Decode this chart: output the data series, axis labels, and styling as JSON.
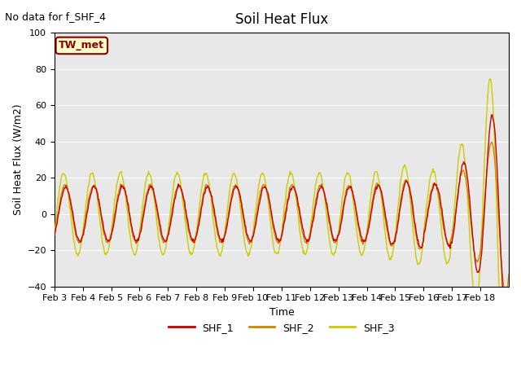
{
  "title": "Soil Heat Flux",
  "ylabel": "Soil Heat Flux (W/m2)",
  "xlabel": "Time",
  "no_data_text": "No data for f_SHF_4",
  "station_label": "TW_met",
  "ylim": [
    -40,
    100
  ],
  "yticks": [
    -40,
    -20,
    0,
    20,
    40,
    60,
    80,
    100
  ],
  "x_tick_labels": [
    "Feb 3",
    "Feb 4",
    "Feb 5",
    "Feb 6",
    "Feb 7",
    "Feb 8",
    "Feb 9",
    "Feb 10",
    "Feb 11",
    "Feb 12",
    "Feb 13",
    "Feb 14",
    "Feb 15",
    "Feb 16",
    "Feb 17",
    "Feb 18"
  ],
  "shf1_color": "#cc0000",
  "shf2_color": "#cc8800",
  "shf3_color": "#cccc00",
  "bg_color": "#e8e8e8",
  "legend_entries": [
    "SHF_1",
    "SHF_2",
    "SHF_3"
  ],
  "num_days": 16,
  "points_per_day": 48
}
